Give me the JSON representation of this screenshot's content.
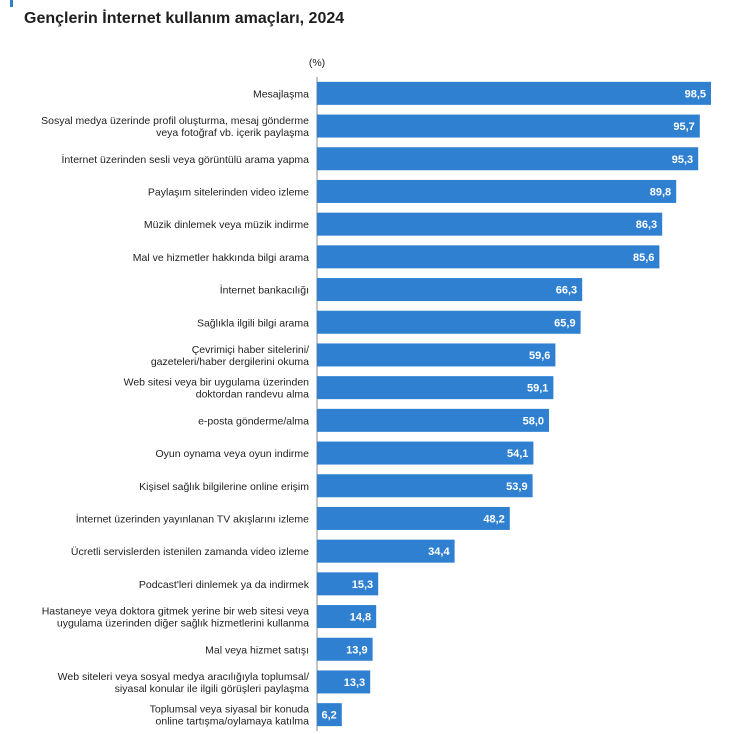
{
  "title": "Gençlerin İnternet kullanım amaçları, 2024",
  "colors": {
    "bar": "#2f80d1",
    "accent": "#2f80d1",
    "axis": "#888888"
  },
  "chart_data": {
    "type": "bar",
    "orientation": "horizontal",
    "unit": "(%)",
    "xlim": [
      0,
      100
    ],
    "grid": false,
    "categories": [
      [
        "Mesajlaşma"
      ],
      [
        "Sosyal medya üzerinde profil oluşturma, mesaj gönderme",
        "veya fotoğraf vb. içerik paylaşma"
      ],
      [
        "İnternet üzerinden sesli veya görüntülü arama yapma"
      ],
      [
        "Paylaşım sitelerinden video izleme"
      ],
      [
        "Müzik dinlemek veya müzik indirme"
      ],
      [
        "Mal ve hizmetler hakkında bilgi arama"
      ],
      [
        "İnternet bankacılığı"
      ],
      [
        "Sağlıkla ilgili bilgi arama"
      ],
      [
        "Çevrimiçi haber sitelerini/",
        "gazeteleri/haber dergilerini okuma"
      ],
      [
        "Web sitesi veya bir uygulama üzerinden",
        "doktordan randevu alma"
      ],
      [
        "e-posta gönderme/alma"
      ],
      [
        "Oyun oynama veya oyun indirme"
      ],
      [
        "Kişisel sağlık bilgilerine online erişim"
      ],
      [
        "İnternet üzerinden yayınlanan TV akışlarını izleme"
      ],
      [
        "Ücretli servislerden istenilen zamanda video izleme"
      ],
      [
        "Podcast'leri dinlemek ya da indirmek"
      ],
      [
        "Hastaneye veya doktora gitmek yerine bir web sitesi veya",
        "uygulama üzerinden diğer sağlık hizmetlerini kullanma"
      ],
      [
        "Mal veya hizmet satışı"
      ],
      [
        "Web siteleri veya sosyal medya aracılığıyla toplumsal/",
        "siyasal konular ile ilgili görüşleri paylaşma"
      ],
      [
        "Toplumsal veya siyasal bir konuda",
        "online tartışma/oylamaya katılma"
      ]
    ],
    "values": [
      98.5,
      95.7,
      95.3,
      89.8,
      86.3,
      85.6,
      66.3,
      65.9,
      59.6,
      59.1,
      58.0,
      54.1,
      53.9,
      48.2,
      34.4,
      15.3,
      14.8,
      13.9,
      13.3,
      6.2
    ],
    "value_labels": [
      "98,5",
      "95,7",
      "95,3",
      "89,8",
      "86,3",
      "85,6",
      "66,3",
      "65,9",
      "59,6",
      "59,1",
      "58,0",
      "54,1",
      "53,9",
      "48,2",
      "34,4",
      "15,3",
      "14,8",
      "13,9",
      "13,3",
      "6,2"
    ]
  }
}
